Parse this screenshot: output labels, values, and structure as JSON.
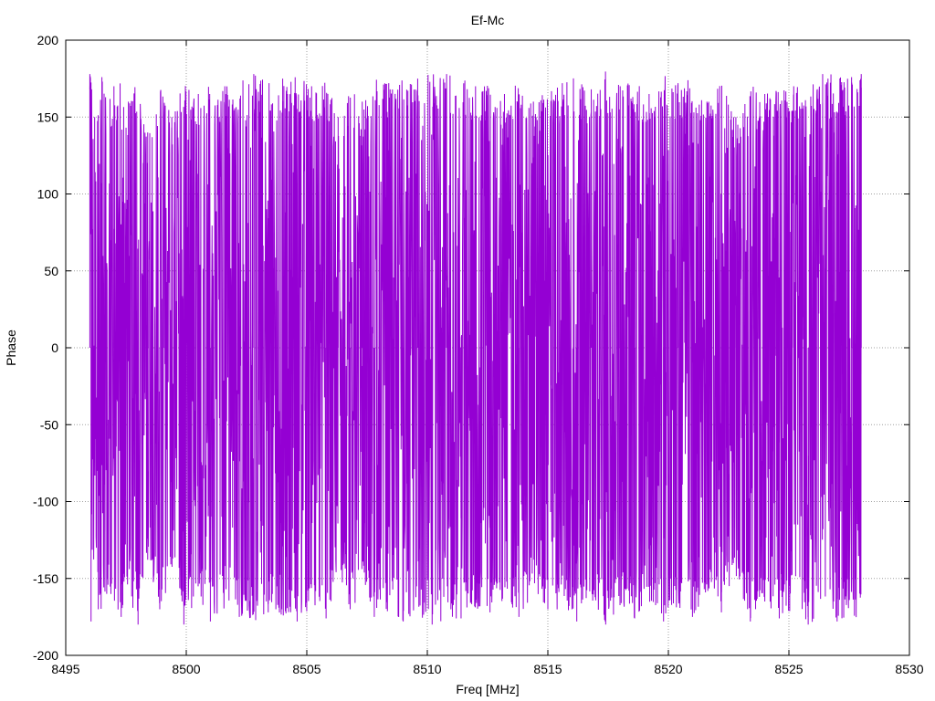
{
  "chart_data": {
    "type": "line",
    "title": "Ef-Mc",
    "xlabel": "Freq [MHz]",
    "ylabel": "Phase",
    "xlim": [
      8495,
      8530
    ],
    "ylim": [
      -200,
      200
    ],
    "x_ticks": [
      "8495",
      "8500",
      "8505",
      "8510",
      "8515",
      "8520",
      "8525",
      "8530"
    ],
    "y_ticks": [
      "200",
      "150",
      "100",
      "50",
      "0",
      "-50",
      "-100",
      "-150",
      "-200"
    ],
    "grid": true,
    "legend": "none",
    "series": [
      {
        "color": "#9400d3",
        "x_range": [
          8496,
          8528
        ],
        "y_range": [
          -180,
          180
        ],
        "points": [
          {
            "x": 8496.0,
            "y": 178
          },
          {
            "x": 8496.05,
            "y": -178
          },
          {
            "x": 8496.2,
            "y": 150
          },
          {
            "x": 8496.35,
            "y": -170
          },
          {
            "x": 8496.5,
            "y": 176
          },
          {
            "x": 8496.7,
            "y": -160
          },
          {
            "x": 8497.0,
            "y": 170
          },
          {
            "x": 8497.3,
            "y": -175
          },
          {
            "x": 8497.6,
            "y": 160
          },
          {
            "x": 8498.0,
            "y": -180
          },
          {
            "x": 8498.4,
            "y": 140
          },
          {
            "x": 8498.9,
            "y": -170
          },
          {
            "x": 8499.4,
            "y": 150
          },
          {
            "x": 8499.9,
            "y": -180
          },
          {
            "x": 8500.5,
            "y": 165
          },
          {
            "x": 8501.0,
            "y": -178
          },
          {
            "x": 8501.6,
            "y": 170
          },
          {
            "x": 8502.2,
            "y": -175
          },
          {
            "x": 8502.8,
            "y": 178
          },
          {
            "x": 8503.4,
            "y": -172
          },
          {
            "x": 8504.0,
            "y": 175
          },
          {
            "x": 8504.6,
            "y": -178
          },
          {
            "x": 8505.2,
            "y": 170
          },
          {
            "x": 8505.8,
            "y": -176
          },
          {
            "x": 8506.3,
            "y": 150
          },
          {
            "x": 8506.8,
            "y": -170
          },
          {
            "x": 8507.3,
            "y": 160
          },
          {
            "x": 8507.8,
            "y": -175
          },
          {
            "x": 8508.4,
            "y": 172
          },
          {
            "x": 8509.0,
            "y": -178
          },
          {
            "x": 8509.6,
            "y": 175
          },
          {
            "x": 8510.2,
            "y": -180
          },
          {
            "x": 8510.8,
            "y": 178
          },
          {
            "x": 8511.4,
            "y": -176
          },
          {
            "x": 8512.0,
            "y": 170
          },
          {
            "x": 8512.6,
            "y": -172
          },
          {
            "x": 8513.2,
            "y": 165
          },
          {
            "x": 8513.8,
            "y": -175
          },
          {
            "x": 8514.4,
            "y": 160
          },
          {
            "x": 8515.0,
            "y": -170
          },
          {
            "x": 8515.6,
            "y": 172
          },
          {
            "x": 8516.2,
            "y": -178
          },
          {
            "x": 8516.8,
            "y": 168
          },
          {
            "x": 8517.4,
            "y": -180
          },
          {
            "x": 8518.0,
            "y": 170
          },
          {
            "x": 8518.6,
            "y": -176
          },
          {
            "x": 8519.2,
            "y": 165
          },
          {
            "x": 8519.8,
            "y": -178
          },
          {
            "x": 8520.4,
            "y": 172
          },
          {
            "x": 8521.0,
            "y": -175
          },
          {
            "x": 8521.6,
            "y": 160
          },
          {
            "x": 8522.2,
            "y": -172
          },
          {
            "x": 8522.8,
            "y": 150
          },
          {
            "x": 8523.4,
            "y": -178
          },
          {
            "x": 8524.0,
            "y": 165
          },
          {
            "x": 8524.6,
            "y": -176
          },
          {
            "x": 8525.2,
            "y": 170
          },
          {
            "x": 8525.8,
            "y": -180
          },
          {
            "x": 8526.4,
            "y": 178
          },
          {
            "x": 8527.0,
            "y": -178
          },
          {
            "x": 8527.6,
            "y": 176
          },
          {
            "x": 8528.0,
            "y": 178
          }
        ]
      }
    ]
  }
}
